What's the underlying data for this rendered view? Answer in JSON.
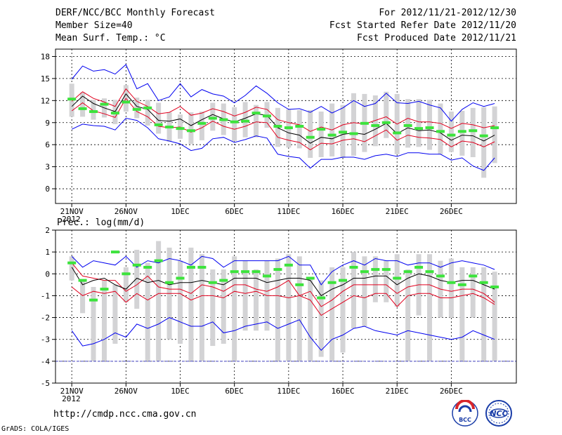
{
  "header": {
    "title": "DERF/NCC/BCC Monthly Forecast",
    "member_size": "Member Size=40",
    "variable": "Mean Surf. Temp.: °C",
    "period": "For 2012/11/21-2012/12/30",
    "start_date": "Fcst Started Refer Date 2012/11/20",
    "produced_date": "Fcst Produced Date 2012/11/21"
  },
  "footer": {
    "url": "http://cmdp.ncc.cma.gov.cn",
    "grads": "GrADS: COLA/IGES",
    "logo_bcc": "BCC",
    "logo_ncc": "NCC"
  },
  "colors": {
    "box": "#d3d3d5",
    "median": "#000000",
    "inner": "#e1001e",
    "outer": "#0000f0",
    "obs": "#3ce33c",
    "baseline": "#4b4bc8"
  },
  "chart_data": [
    {
      "type": "line",
      "ylabel": "Mean Surf. Temp.: °C",
      "ylim": [
        -2,
        19
      ],
      "yticks": [
        0,
        3,
        6,
        9,
        12,
        15,
        18
      ],
      "xlim": [
        -1.5,
        41
      ],
      "xticks": [
        {
          "day": 0,
          "label": "21NOV",
          "sub": "2012"
        },
        {
          "day": 5,
          "label": "26NOV"
        },
        {
          "day": 10,
          "label": "1DEC"
        },
        {
          "day": 15,
          "label": "6DEC"
        },
        {
          "day": 20,
          "label": "11DEC"
        },
        {
          "day": 25,
          "label": "16DEC"
        },
        {
          "day": 30,
          "label": "21DEC"
        },
        {
          "day": 35,
          "label": "26DEC"
        }
      ],
      "grid": true,
      "days": [
        0,
        1,
        2,
        3,
        4,
        5,
        6,
        7,
        8,
        9,
        10,
        11,
        12,
        13,
        14,
        15,
        16,
        17,
        18,
        19,
        20,
        21,
        22,
        23,
        24,
        25,
        26,
        27,
        28,
        29,
        30,
        31,
        32,
        33,
        34,
        35,
        36,
        37,
        38,
        39
      ],
      "series": [
        {
          "name": "Box top",
          "values": [
            14.3,
            13.1,
            12.1,
            12.3,
            12.1,
            14.1,
            12.4,
            12.1,
            11.7,
            10.4,
            10.1,
            10.4,
            10.5,
            11.7,
            11.6,
            11.1,
            11.8,
            11.4,
            11.8,
            11.0,
            10.8,
            10.7,
            10.7,
            10.5,
            11.6,
            11.4,
            13.0,
            12.9,
            12.7,
            13.2,
            12.9,
            12.2,
            12.2,
            12.1,
            11.6,
            10.5,
            10.6,
            11.0,
            11.1,
            11.2
          ]
        },
        {
          "name": "Box bottom",
          "values": [
            9.8,
            9.8,
            9.4,
            9.7,
            8.8,
            10.5,
            9.6,
            8.6,
            7.5,
            6.4,
            6.8,
            6.1,
            6.6,
            7.9,
            7.3,
            6.5,
            7.0,
            7.0,
            8.3,
            5.7,
            5.6,
            5.5,
            4.2,
            4.3,
            4.4,
            4.2,
            4.5,
            5.0,
            5.8,
            6.9,
            4.7,
            5.6,
            5.7,
            5.3,
            4.7,
            5.0,
            4.5,
            4.3,
            1.5,
            3.5
          ]
        },
        {
          "name": "Max",
          "values": [
            14.9,
            16.7,
            16.0,
            16.2,
            15.6,
            16.9,
            13.6,
            14.3,
            12.0,
            12.5,
            14.3,
            12.5,
            13.5,
            12.9,
            12.6,
            11.7,
            12.7,
            14.0,
            13.0,
            11.7,
            10.8,
            10.9,
            10.4,
            11.2,
            10.3,
            11.0,
            12.0,
            11.2,
            11.6,
            13.0,
            11.7,
            11.6,
            11.9,
            11.4,
            11.0,
            9.2,
            10.8,
            11.7,
            11.2,
            11.6
          ]
        },
        {
          "name": "Upper red",
          "values": [
            11.9,
            13.2,
            12.3,
            11.8,
            11.2,
            13.6,
            11.9,
            11.2,
            10.2,
            10.4,
            11.2,
            10.0,
            10.3,
            10.9,
            10.5,
            9.9,
            10.4,
            11.1,
            10.8,
            9.4,
            9.0,
            8.7,
            7.8,
            8.4,
            8.0,
            8.7,
            9.0,
            8.8,
            9.3,
            9.8,
            8.8,
            9.6,
            9.1,
            9.1,
            8.9,
            8.2,
            8.9,
            8.7,
            8.3,
            8.6
          ]
        },
        {
          "name": "Median",
          "values": [
            11.2,
            12.6,
            11.6,
            11.0,
            10.5,
            12.9,
            11.2,
            10.8,
            9.3,
            9.2,
            9.5,
            8.6,
            9.4,
            10.1,
            9.5,
            9.1,
            9.6,
            10.2,
            10.0,
            8.3,
            7.6,
            7.3,
            6.2,
            7.0,
            6.8,
            7.4,
            7.6,
            7.4,
            8.1,
            8.9,
            7.5,
            8.3,
            7.9,
            8.0,
            7.6,
            6.6,
            7.3,
            7.2,
            6.5,
            7.3
          ]
        },
        {
          "name": "Lower red",
          "values": [
            10.6,
            11.7,
            10.6,
            10.2,
            9.7,
            12.3,
            10.5,
            9.8,
            8.5,
            8.3,
            8.4,
            7.7,
            8.3,
            9.2,
            8.5,
            8.1,
            8.5,
            9.1,
            9.0,
            7.0,
            6.6,
            6.3,
            5.3,
            6.2,
            6.1,
            6.6,
            6.8,
            6.4,
            7.2,
            8.0,
            6.6,
            7.3,
            7.0,
            6.9,
            6.7,
            5.7,
            6.5,
            6.3,
            5.7,
            6.4
          ]
        },
        {
          "name": "Min",
          "values": [
            8.1,
            8.8,
            8.6,
            8.5,
            8.0,
            9.6,
            9.3,
            8.3,
            6.8,
            6.5,
            6.1,
            5.2,
            5.5,
            6.8,
            7.0,
            6.3,
            6.7,
            7.2,
            6.9,
            4.7,
            4.4,
            4.2,
            2.8,
            4.0,
            4.0,
            4.3,
            4.3,
            4.0,
            4.5,
            4.7,
            4.4,
            4.9,
            4.9,
            4.7,
            4.7,
            3.9,
            4.2,
            3.1,
            2.5,
            4.2
          ]
        },
        {
          "name": "Observed",
          "values": [
            12.2,
            10.9,
            10.5,
            11.5,
            10.3,
            11.8,
            10.8,
            11.0,
            8.7,
            8.4,
            8.2,
            7.9,
            8.9,
            9.6,
            9.4,
            9.1,
            9.2,
            10.3,
            9.9,
            8.5,
            8.3,
            8.5,
            7.0,
            8.1,
            7.3,
            7.7,
            7.5,
            8.9,
            8.6,
            9.0,
            7.6,
            8.6,
            8.2,
            8.3,
            7.8,
            7.3,
            7.8,
            7.9,
            7.2,
            8.3
          ]
        }
      ]
    },
    {
      "type": "line",
      "ylabel": "Prec.: log(mm/d)",
      "ylim": [
        -5,
        2
      ],
      "yticks": [
        -5,
        -4,
        -3,
        -2,
        -1,
        0,
        1,
        2
      ],
      "xlim": [
        -1.5,
        41
      ],
      "xticks": [
        {
          "day": 0,
          "label": "21NOV",
          "sub": "2012"
        },
        {
          "day": 5,
          "label": "26NOV"
        },
        {
          "day": 10,
          "label": "1DEC"
        },
        {
          "day": 15,
          "label": "6DEC"
        },
        {
          "day": 20,
          "label": "11DEC"
        },
        {
          "day": 25,
          "label": "16DEC"
        },
        {
          "day": 30,
          "label": "21DEC"
        },
        {
          "day": 35,
          "label": "26DEC"
        }
      ],
      "grid": true,
      "baseline": -4,
      "days": [
        0,
        1,
        2,
        3,
        4,
        5,
        6,
        7,
        8,
        9,
        10,
        11,
        12,
        13,
        14,
        15,
        16,
        17,
        18,
        19,
        20,
        21,
        22,
        23,
        24,
        25,
        26,
        27,
        28,
        29,
        30,
        31,
        32,
        33,
        34,
        35,
        36,
        37,
        38,
        39
      ],
      "series": [
        {
          "name": "Box top",
          "values": [
            0.8,
            -0.3,
            -0.6,
            -0.3,
            -0.5,
            0.3,
            1.1,
            0.5,
            1.5,
            1.2,
            0.6,
            1.2,
            0.9,
            0.2,
            0.2,
            0.8,
            0.6,
            0.2,
            0.6,
            0.7,
            0.9,
            0.8,
            -0.2,
            -0.3,
            0.3,
            0.3,
            1.0,
            0.8,
            0.8,
            0.6,
            0.9,
            0.2,
            0.9,
            0.9,
            0.6,
            0.7,
            0.3,
            0.3,
            0.3,
            0.1
          ]
        },
        {
          "name": "Box bottom",
          "values": [
            -0.3,
            -1.8,
            -4.0,
            -4.0,
            -3.2,
            -1.3,
            -1.6,
            -4.0,
            -4.0,
            -3.0,
            -3.2,
            -4.0,
            -4.0,
            -3.3,
            -3.2,
            -4.0,
            -2.6,
            -2.6,
            -2.6,
            -4.0,
            -4.0,
            -4.0,
            -4.0,
            -3.8,
            -4.0,
            -3.6,
            -2.5,
            -2.4,
            -1.3,
            -1.3,
            -1.5,
            -4.0,
            -1.9,
            -4.0,
            -2.0,
            -2.0,
            -4.0,
            -2.0,
            -4.0,
            -4.0
          ]
        },
        {
          "name": "Max",
          "values": [
            0.8,
            0.3,
            0.6,
            0.5,
            0.4,
            0.8,
            0.3,
            0.6,
            0.5,
            0.7,
            0.6,
            0.4,
            0.8,
            0.7,
            0.3,
            0.6,
            0.6,
            0.6,
            0.6,
            0.6,
            0.8,
            0.4,
            0.4,
            -0.5,
            0.1,
            0.4,
            0.6,
            0.4,
            0.7,
            0.6,
            0.6,
            0.4,
            0.5,
            0.5,
            0.3,
            0.5,
            0.6,
            0.5,
            0.4,
            0.2
          ]
        },
        {
          "name": "Upper red",
          "values": [
            0.5,
            -0.1,
            -0.2,
            -0.3,
            -0.3,
            -0.8,
            -0.5,
            -0.1,
            -0.6,
            -0.7,
            -0.7,
            -0.9,
            -0.5,
            -0.6,
            -0.8,
            -0.5,
            -0.5,
            -0.7,
            -0.8,
            -0.6,
            -0.3,
            -1.0,
            -0.8,
            -1.5,
            -1.2,
            -0.8,
            -0.5,
            -0.5,
            -0.5,
            -0.5,
            -0.9,
            -0.6,
            -0.5,
            -0.5,
            -0.7,
            -0.8,
            -0.7,
            -0.7,
            -0.9,
            -1.3
          ]
        },
        {
          "name": "Median",
          "values": [
            0.3,
            -0.5,
            -0.3,
            -0.2,
            -0.5,
            -0.7,
            -0.2,
            -0.4,
            -0.3,
            -0.5,
            -0.4,
            -0.4,
            -0.3,
            -0.4,
            -0.5,
            -0.2,
            -0.2,
            -0.2,
            -0.4,
            -0.3,
            -0.2,
            -0.2,
            -0.3,
            -1.0,
            -0.7,
            -0.5,
            -0.2,
            -0.2,
            -0.1,
            -0.1,
            -0.5,
            -0.2,
            0.0,
            -0.1,
            -0.3,
            -0.4,
            -0.3,
            -0.3,
            -0.5,
            -0.7
          ]
        },
        {
          "name": "Lower red",
          "values": [
            -0.6,
            -1.0,
            -0.8,
            -0.9,
            -0.8,
            -1.3,
            -0.9,
            -1.2,
            -0.9,
            -0.9,
            -0.9,
            -1.2,
            -1.0,
            -1.0,
            -1.1,
            -0.8,
            -0.9,
            -0.8,
            -1.0,
            -1.0,
            -1.1,
            -1.0,
            -1.2,
            -1.9,
            -1.6,
            -1.3,
            -1.0,
            -1.1,
            -0.9,
            -0.9,
            -1.5,
            -1.0,
            -0.9,
            -0.9,
            -1.1,
            -1.1,
            -1.0,
            -0.9,
            -1.1,
            -1.4
          ]
        },
        {
          "name": "Min",
          "values": [
            -2.6,
            -3.3,
            -3.2,
            -3.0,
            -2.7,
            -2.9,
            -2.3,
            -2.5,
            -2.3,
            -2.0,
            -2.2,
            -2.4,
            -2.4,
            -2.2,
            -2.7,
            -2.6,
            -2.4,
            -2.3,
            -2.2,
            -2.5,
            -2.3,
            -2.1,
            -2.9,
            -3.5,
            -3.0,
            -2.8,
            -2.5,
            -2.4,
            -2.6,
            -2.7,
            -2.8,
            -2.6,
            -2.7,
            -2.8,
            -2.9,
            -3.0,
            -2.9,
            -2.6,
            -2.8,
            -3.0
          ]
        },
        {
          "name": "Observed",
          "values": [
            0.5,
            -0.3,
            -1.2,
            -0.7,
            1.0,
            0.0,
            0.4,
            0.3,
            0.6,
            -0.4,
            -0.2,
            0.3,
            0.3,
            -0.4,
            -0.3,
            0.1,
            0.1,
            0.1,
            -0.1,
            0.2,
            0.4,
            -0.5,
            -0.2,
            -1.1,
            -0.4,
            -0.3,
            0.3,
            0.1,
            0.2,
            0.2,
            -0.2,
            0.1,
            0.3,
            0.1,
            -0.1,
            -0.4,
            -0.5,
            -0.1,
            -0.4,
            -0.6
          ]
        }
      ]
    }
  ]
}
